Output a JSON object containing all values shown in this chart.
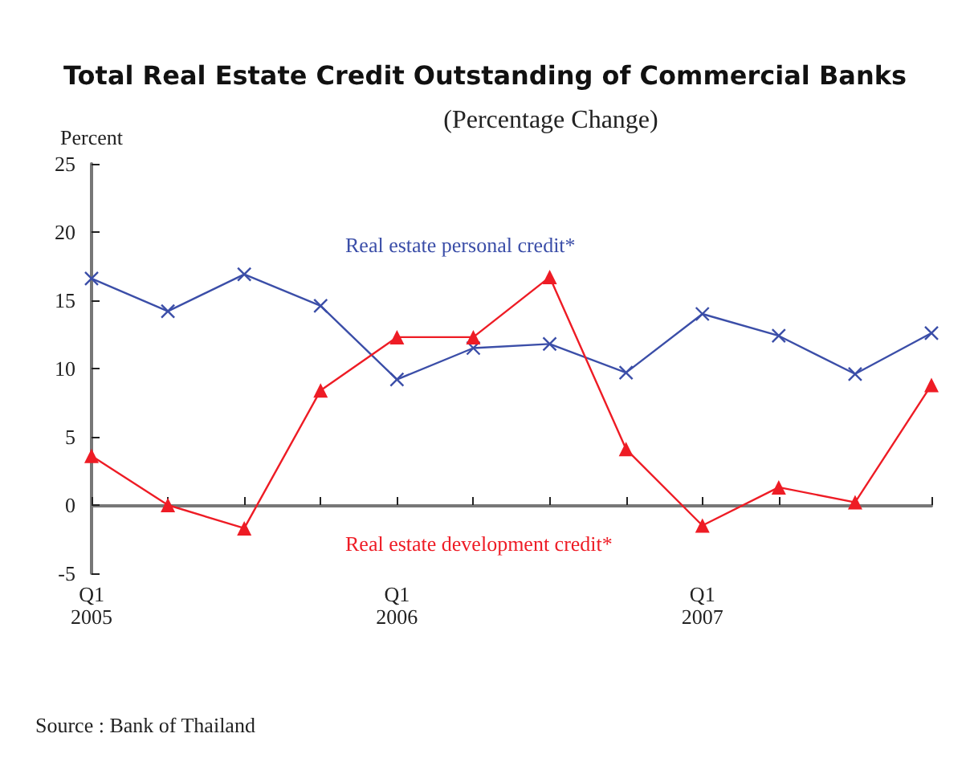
{
  "chart_data": {
    "type": "line",
    "title": "Total Real Estate Credit Outstanding of Commercial Banks",
    "subtitle": "(Percentage Change)",
    "ylabel": "Percent",
    "categories": [
      "Q1\n2005",
      null,
      null,
      null,
      "Q1\n2006",
      null,
      null,
      null,
      "Q1\n2007",
      null,
      null,
      null
    ],
    "series": [
      {
        "name": "Real estate personal credit*",
        "color": "#3b4ea8",
        "marker": "cross",
        "values": [
          16.6,
          14.2,
          16.9,
          14.6,
          9.2,
          11.5,
          11.8,
          9.7,
          14.0,
          12.4,
          9.6,
          12.6
        ]
      },
      {
        "name": "Real estate development credit*",
        "color": "#ee1c25",
        "marker": "triangle",
        "values": [
          3.6,
          0,
          -1.7,
          8.4,
          12.3,
          12.3,
          16.7,
          4.1,
          -1.5,
          1.3,
          0.2,
          8.8
        ]
      }
    ],
    "ylim": [
      -5,
      25
    ],
    "yticks": [
      -5,
      0,
      5,
      10,
      15,
      20,
      25
    ],
    "legend": false,
    "annotations": [
      "Source : Bank of Thailand"
    ]
  }
}
